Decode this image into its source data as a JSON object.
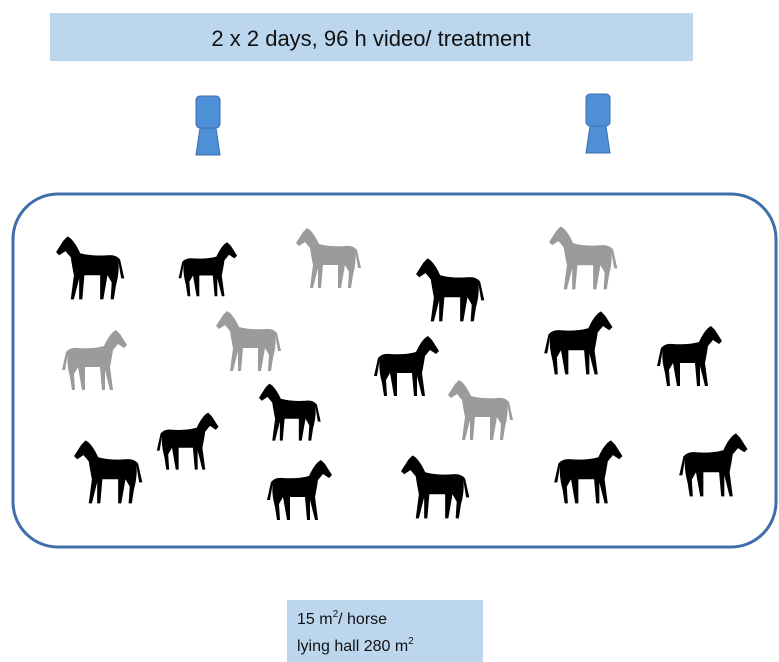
{
  "header": {
    "title": "2 x 2 days, 96 h video/ treatment"
  },
  "note": {
    "lines": [
      {
        "text": "15 m",
        "sup": "2",
        "after": "/ horse"
      },
      {
        "text": "lying hall 280 m",
        "sup": "2"
      }
    ]
  }
}
